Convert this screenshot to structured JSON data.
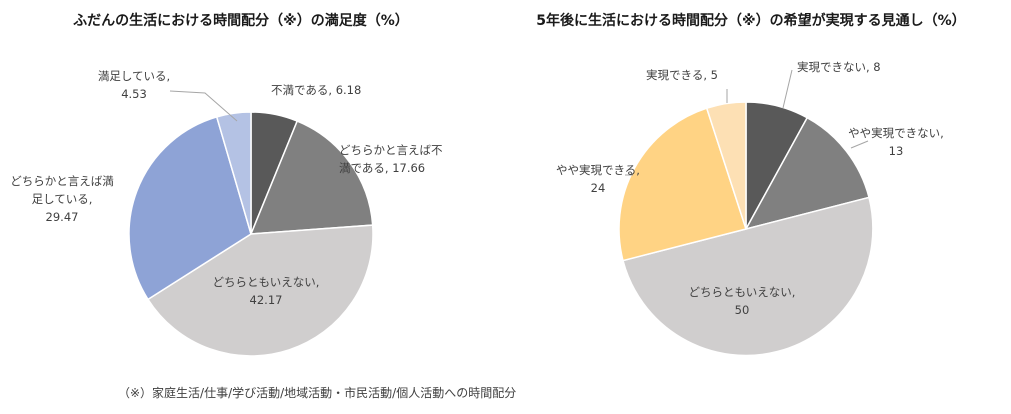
{
  "chart_data": [
    {
      "type": "pie",
      "title": "ふだんの生活における時間配分（※）の満足度（%）",
      "slices": [
        {
          "label_lines": [
            "不満である, 6.18"
          ],
          "value": 6.18,
          "color": "#595959"
        },
        {
          "label_lines": [
            "どちらかと言えば不",
            "満である, 17.66"
          ],
          "value": 17.66,
          "color": "#808080"
        },
        {
          "label_lines": [
            "どちらともいえない,",
            "42.17"
          ],
          "value": 42.17,
          "color": "#d0cece"
        },
        {
          "label_lines": [
            "どちらかと言えば満",
            "足している,",
            "29.47"
          ],
          "value": 29.47,
          "color": "#8ea3d6"
        },
        {
          "label_lines": [
            "満足している,",
            "4.53"
          ],
          "value": 4.53,
          "color": "#b4c2e4"
        }
      ]
    },
    {
      "type": "pie",
      "title": "5年後に生活における時間配分（※）の希望が実現する見通し（%）",
      "slices": [
        {
          "label_lines": [
            "実現できない, 8"
          ],
          "value": 8,
          "color": "#595959"
        },
        {
          "label_lines": [
            "やや実現できない,",
            "13"
          ],
          "value": 13,
          "color": "#808080"
        },
        {
          "label_lines": [
            "どちらともいえない,",
            "50"
          ],
          "value": 50,
          "color": "#d0cece"
        },
        {
          "label_lines": [
            "やや実現できる,",
            "24"
          ],
          "value": 24,
          "color": "#ffd384"
        },
        {
          "label_lines": [
            "実現できる, 5"
          ],
          "value": 5,
          "color": "#fde0b4"
        }
      ]
    }
  ],
  "footnote": "（※）家庭生活/仕事/学び活動/地域活動・市民活動/個人活動への時間配分"
}
